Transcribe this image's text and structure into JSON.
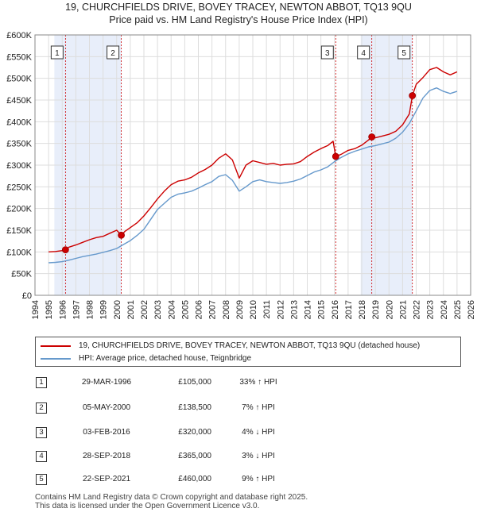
{
  "title_line1": "19, CHURCHFIELDS DRIVE, BOVEY TRACEY, NEWTON ABBOT, TQ13 9QU",
  "title_line2": "Price paid vs. HM Land Registry's House Price Index (HPI)",
  "colors": {
    "property": "#cc0000",
    "hpi": "#6699cc",
    "band": "#e8eefa",
    "grid": "#dddddd"
  },
  "legend": {
    "property": "19, CHURCHFIELDS DRIVE, BOVEY TRACEY, NEWTON ABBOT, TQ13 9QU (detached house)",
    "hpi": "HPI: Average price, detached house, Teignbridge"
  },
  "transactions": [
    {
      "num": "1",
      "date": "29-MAR-1996",
      "price": "£105,000",
      "hpi": "33% ↑ HPI"
    },
    {
      "num": "2",
      "date": "05-MAY-2000",
      "price": "£138,500",
      "hpi": "7% ↑ HPI"
    },
    {
      "num": "3",
      "date": "03-FEB-2016",
      "price": "£320,000",
      "hpi": "4% ↓ HPI"
    },
    {
      "num": "4",
      "date": "28-SEP-2018",
      "price": "£365,000",
      "hpi": "3% ↓ HPI"
    },
    {
      "num": "5",
      "date": "22-SEP-2021",
      "price": "£460,000",
      "hpi": "9% ↑ HPI"
    }
  ],
  "footer_line1": "Contains HM Land Registry data © Crown copyright and database right 2025.",
  "footer_line2": "This data is licensed under the Open Government Licence v3.0.",
  "chart_data": {
    "type": "line",
    "xlim": [
      1994,
      2026
    ],
    "ylim": [
      0,
      600000
    ],
    "xticks": [
      "1994",
      "1995",
      "1996",
      "1997",
      "1998",
      "1999",
      "2000",
      "2001",
      "2002",
      "2003",
      "2004",
      "2005",
      "2006",
      "2007",
      "2008",
      "2009",
      "2010",
      "2011",
      "2012",
      "2013",
      "2014",
      "2015",
      "2016",
      "2017",
      "2018",
      "2019",
      "2020",
      "2021",
      "2022",
      "2023",
      "2024",
      "2025",
      "2026"
    ],
    "yticks": [
      "£0",
      "£50K",
      "£100K",
      "£150K",
      "£200K",
      "£250K",
      "£300K",
      "£350K",
      "£400K",
      "£450K",
      "£500K",
      "£550K",
      "£600K"
    ],
    "sales": [
      {
        "label": "1",
        "x": 1996.24,
        "y": 105000
      },
      {
        "label": "2",
        "x": 2000.34,
        "y": 138500
      },
      {
        "label": "3",
        "x": 2016.09,
        "y": 320000
      },
      {
        "label": "4",
        "x": 2018.74,
        "y": 365000
      },
      {
        "label": "5",
        "x": 2021.72,
        "y": 460000
      }
    ],
    "series": [
      {
        "name": "HPI: Average price, detached house, Teignbridge",
        "x": [
          1995.0,
          1995.5,
          1996.0,
          1996.5,
          1997.0,
          1997.5,
          1998.0,
          1998.5,
          1999.0,
          1999.5,
          2000.0,
          2000.5,
          2001.0,
          2001.5,
          2002.0,
          2002.5,
          2003.0,
          2003.5,
          2004.0,
          2004.5,
          2005.0,
          2005.5,
          2006.0,
          2006.5,
          2007.0,
          2007.5,
          2008.0,
          2008.5,
          2009.0,
          2009.5,
          2010.0,
          2010.5,
          2011.0,
          2011.5,
          2012.0,
          2012.5,
          2013.0,
          2013.5,
          2014.0,
          2014.5,
          2015.0,
          2015.5,
          2016.0,
          2016.5,
          2017.0,
          2017.5,
          2018.0,
          2018.5,
          2019.0,
          2019.5,
          2020.0,
          2020.5,
          2021.0,
          2021.5,
          2022.0,
          2022.5,
          2023.0,
          2023.5,
          2024.0,
          2024.5,
          2025.0
        ],
        "y": [
          75000,
          76000,
          77500,
          81000,
          85000,
          89000,
          92000,
          95000,
          99000,
          103000,
          108000,
          117000,
          126000,
          138000,
          152000,
          175000,
          198000,
          212000,
          226000,
          233000,
          236000,
          240000,
          247000,
          255000,
          262000,
          274000,
          278000,
          265000,
          240000,
          250000,
          262000,
          266000,
          262000,
          260000,
          258000,
          260000,
          263000,
          268000,
          276000,
          284000,
          289000,
          296000,
          308000,
          318000,
          326000,
          332000,
          337000,
          342000,
          345000,
          349000,
          353000,
          362000,
          376000,
          396000,
          425000,
          455000,
          472000,
          478000,
          470000,
          465000,
          470000
        ]
      },
      {
        "name": "19, CHURCHFIELDS DRIVE, BOVEY TRACEY, NEWTON ABBOT, TQ13 9QU (detached house)",
        "x": [
          1995.0,
          1995.5,
          1996.0,
          1996.24,
          1996.5,
          1997.0,
          1997.5,
          1998.0,
          1998.5,
          1999.0,
          1999.5,
          2000.0,
          2000.34,
          2000.6,
          2001.0,
          2001.5,
          2002.0,
          2002.5,
          2003.0,
          2003.5,
          2004.0,
          2004.5,
          2005.0,
          2005.5,
          2006.0,
          2006.5,
          2007.0,
          2007.5,
          2008.0,
          2008.5,
          2009.0,
          2009.5,
          2010.0,
          2010.5,
          2011.0,
          2011.5,
          2012.0,
          2012.5,
          2013.0,
          2013.5,
          2014.0,
          2014.5,
          2015.0,
          2015.5,
          2015.9,
          2016.09,
          2016.5,
          2017.0,
          2017.5,
          2018.0,
          2018.5,
          2018.74,
          2019.0,
          2019.5,
          2020.0,
          2020.5,
          2021.0,
          2021.5,
          2021.72,
          2022.0,
          2022.5,
          2023.0,
          2023.5,
          2024.0,
          2024.5,
          2025.0
        ],
        "y": [
          100000,
          101000,
          103000,
          105000,
          111000,
          116000,
          122000,
          128000,
          133000,
          136000,
          143000,
          150000,
          138500,
          147000,
          156000,
          167000,
          183000,
          202000,
          222000,
          240000,
          255000,
          263000,
          266000,
          272000,
          282000,
          290000,
          300000,
          316000,
          326000,
          312000,
          270000,
          300000,
          310000,
          306000,
          302000,
          304000,
          300000,
          302000,
          303000,
          308000,
          320000,
          330000,
          338000,
          345000,
          355000,
          320000,
          325000,
          334000,
          338000,
          346000,
          358000,
          365000,
          363000,
          367000,
          371000,
          378000,
          393000,
          418000,
          460000,
          486000,
          502000,
          520000,
          525000,
          515000,
          508000,
          515000
        ]
      }
    ]
  }
}
